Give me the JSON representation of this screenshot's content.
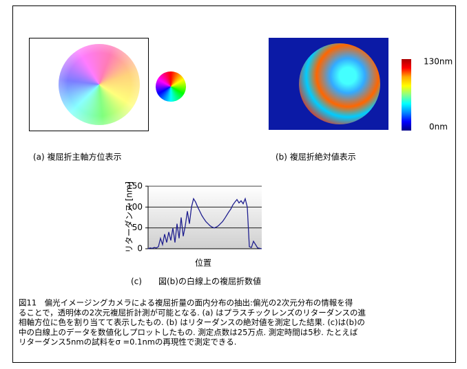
{
  "figure": {
    "caption_a": "(a)  複屈折主軸方位表示",
    "caption_b": "(b)  複屈折絶対値表示",
    "colorbar_max": "130nm",
    "colorbar_min": "0nm",
    "caption_c": "(c)　　図(b)の白線上の複屈折数値",
    "paragraph": [
      "図11　偏光イメージングカメラによる複屈折量の面内分布の抽出:偏光の2次元分布の情報を得",
      "ることで，透明体の2次元複屈折計測が可能となる. (a) はプラスチックレンズのリターダンスの進",
      "相軸方位に色を割り当てて表示したもの. (b) はリターダンスの絶対値を測定した結果. (c)は(b)の",
      "中の白線上のデータを数値化しプロットしたもの. 測定点数は25万点. 測定時間は5秒. たとえば",
      "リターダンス5nmの試料をσ =0.1nmの再現性で測定できる."
    ]
  },
  "chart_data": {
    "type": "line",
    "y_label": "リターダンス [nm]",
    "x_label": "位置",
    "color": "#1f1f8f",
    "ylim": [
      0,
      150
    ],
    "yticks": [
      0,
      50,
      100,
      150
    ],
    "grid": true,
    "values": [
      0,
      2,
      1,
      3,
      2,
      5,
      25,
      10,
      35,
      15,
      40,
      20,
      50,
      15,
      60,
      25,
      75,
      30,
      55,
      90,
      60,
      100,
      120,
      112,
      100,
      90,
      80,
      72,
      65,
      60,
      55,
      52,
      50,
      52,
      55,
      60,
      65,
      72,
      80,
      88,
      95,
      105,
      112,
      118,
      110,
      115,
      108,
      120,
      100,
      5,
      3,
      18,
      10,
      2,
      1,
      0
    ]
  }
}
